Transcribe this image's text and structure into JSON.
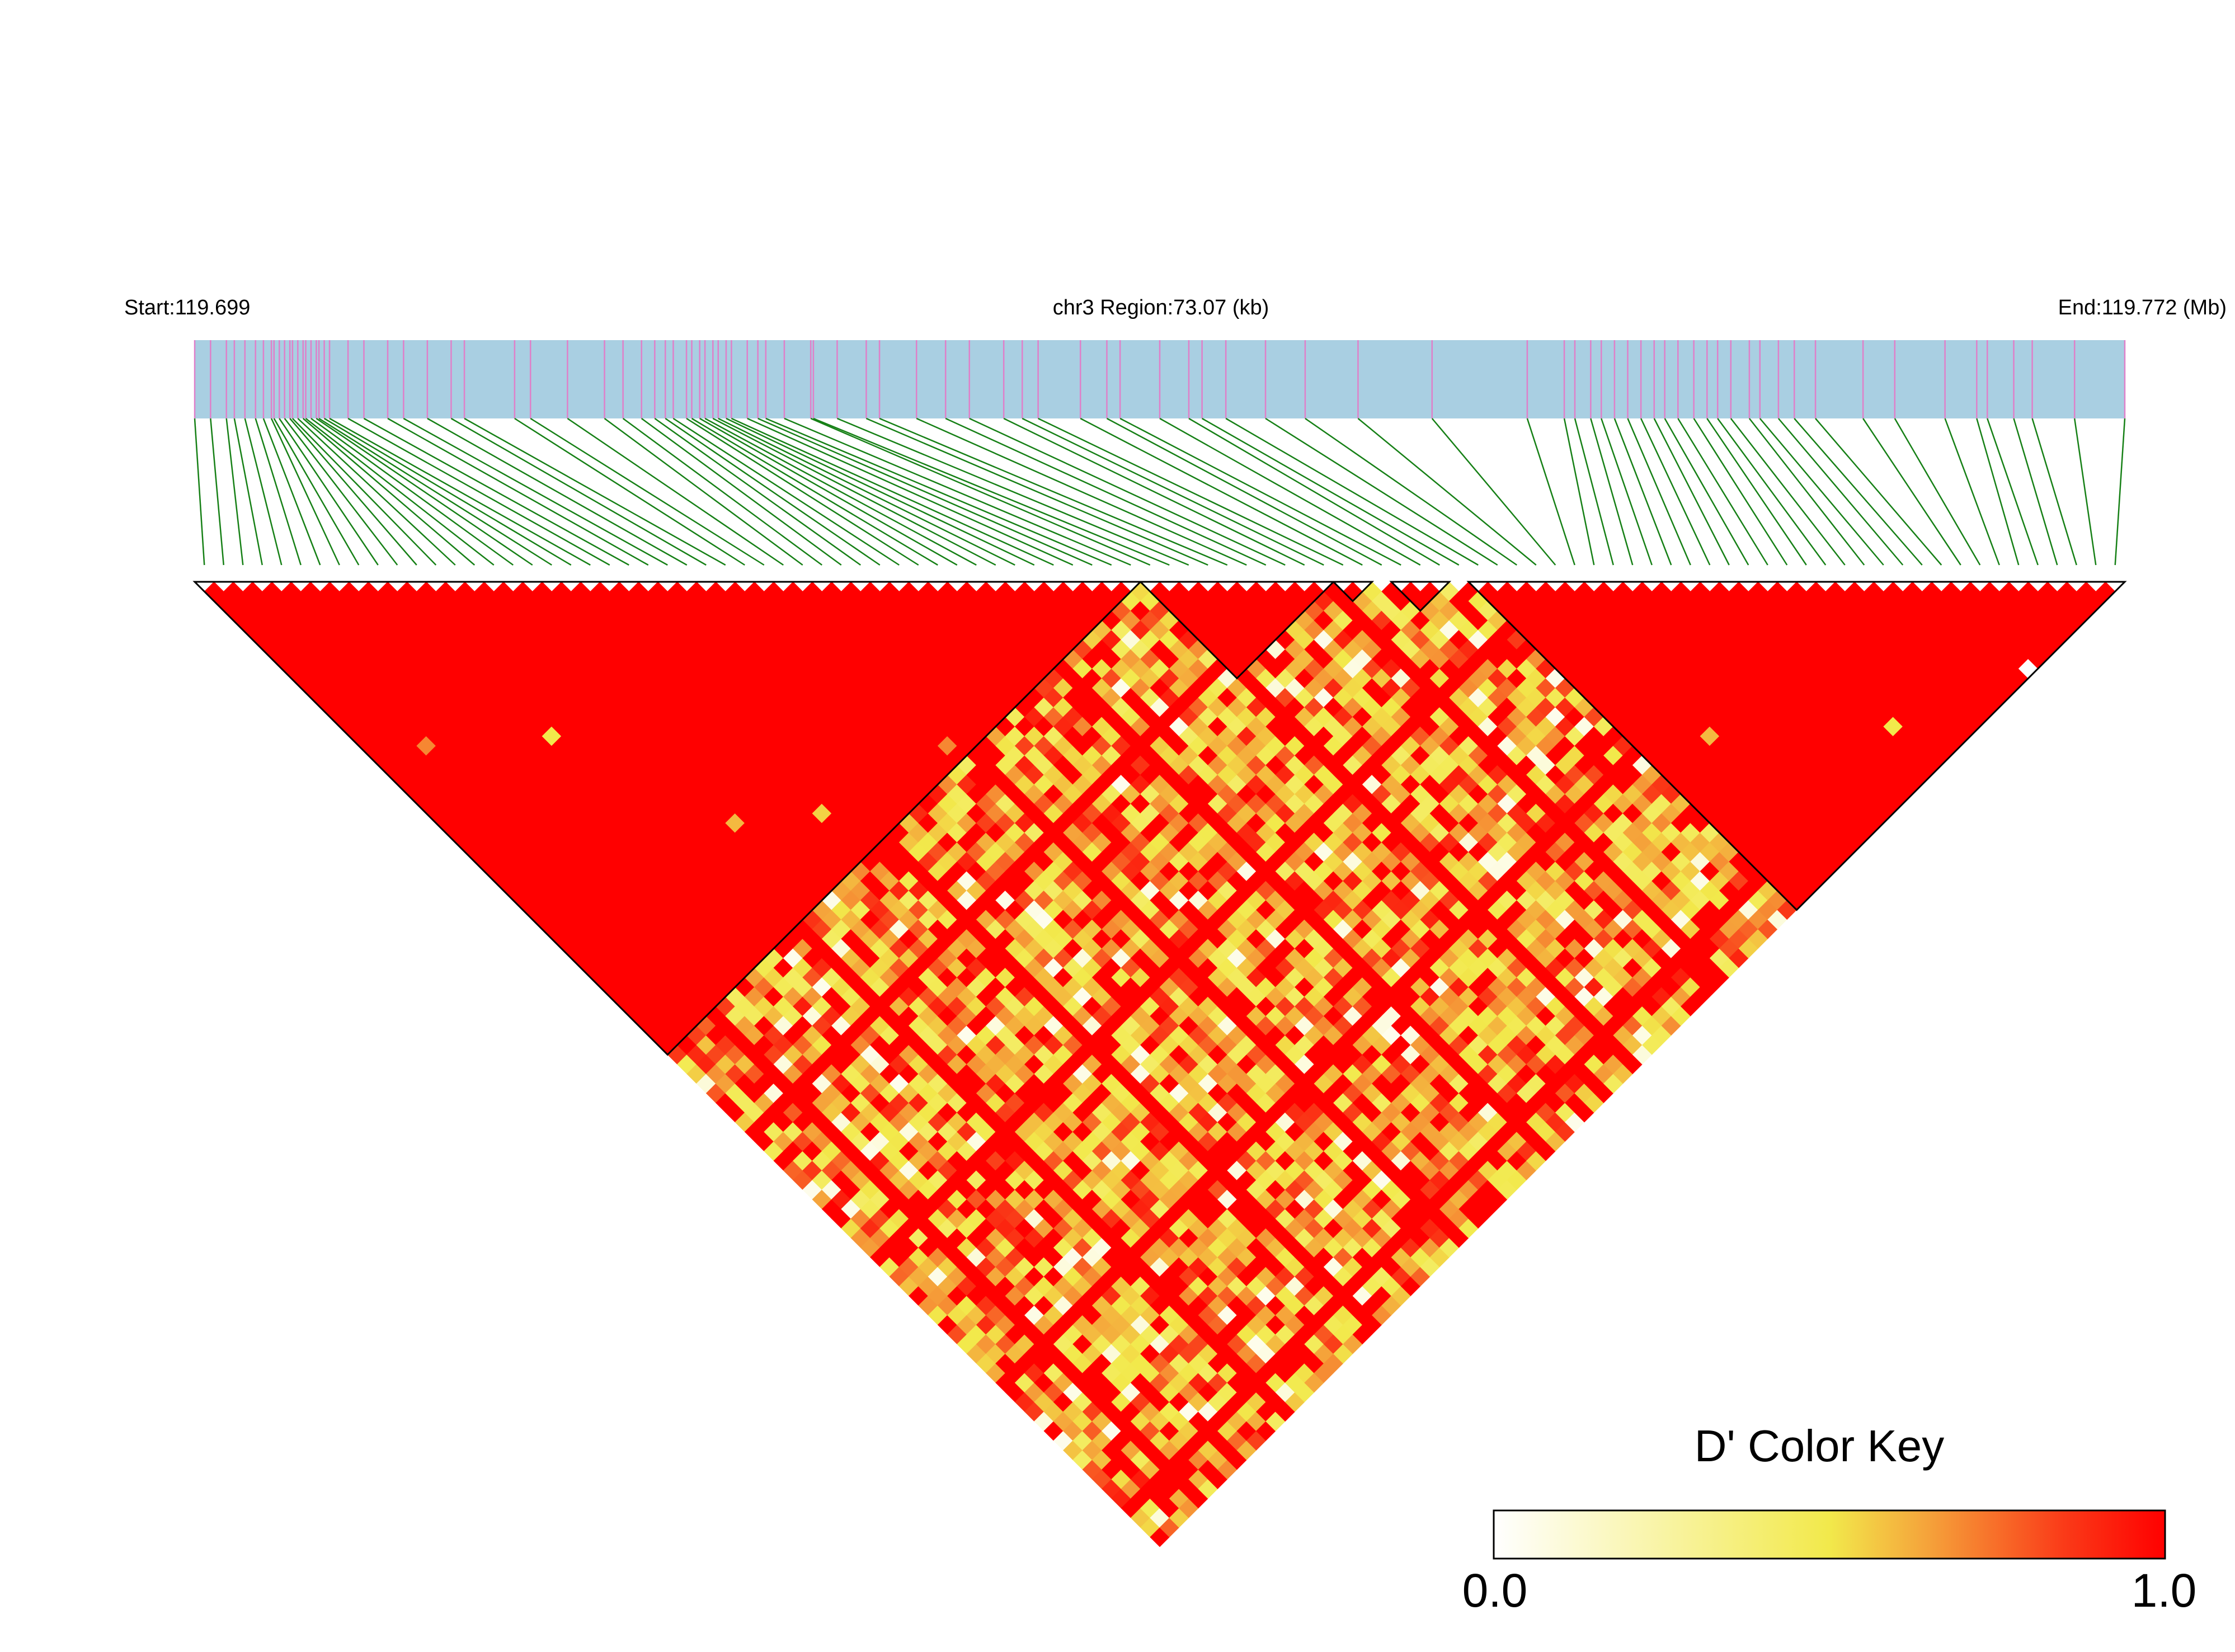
{
  "header": {
    "start_label": "Start:119.699",
    "region_label": "chr3 Region:73.07 (kb)",
    "end_label": "End:119.772 (Mb)"
  },
  "color_key": {
    "title": "D' Color Key",
    "min_label": "0.0",
    "max_label": "1.0"
  },
  "colors": {
    "track_fill": "#a9cfe2",
    "snp_marker": "#df80c9",
    "connector": "#168016",
    "block_outline": "#000000",
    "gradient": [
      "#ffffff",
      "#f2e94b",
      "#f5a13a",
      "#fa3a18",
      "#ff0000"
    ]
  },
  "chart_data": {
    "type": "heatmap",
    "title": "",
    "region": {
      "chromosome": "chr3",
      "start_mb": 119.699,
      "end_mb": 119.772,
      "span_kb": 73.07
    },
    "value_range": [
      0.0,
      1.0
    ],
    "snp_count": 100,
    "snp_positions_mb": [
      119.699,
      119.6996,
      119.7002,
      119.7005,
      119.7009,
      119.7013,
      119.7016,
      119.7019,
      119.702,
      119.7022,
      119.7024,
      119.7026,
      119.7027,
      119.7029,
      119.7031,
      119.7032,
      119.7034,
      119.7036,
      119.7037,
      119.7039,
      119.7041,
      119.7048,
      119.7054,
      119.7063,
      119.7069,
      119.7078,
      119.7087,
      119.7092,
      119.7111,
      119.7117,
      119.7131,
      119.7145,
      119.7152,
      119.7159,
      119.7164,
      119.7168,
      119.7171,
      119.7176,
      119.7178,
      119.7181,
      119.7183,
      119.7186,
      119.7188,
      119.7191,
      119.7193,
      119.7199,
      119.7203,
      119.7206,
      119.7213,
      119.7223,
      119.7224,
      119.7233,
      119.7244,
      119.7249,
      119.7263,
      119.7274,
      119.7283,
      119.7296,
      119.7303,
      119.7309,
      119.7325,
      119.7335,
      119.734,
      119.7355,
      119.7366,
      119.7371,
      119.738,
      119.7395,
      119.741,
      119.743,
      119.7458,
      119.7494,
      119.7508,
      119.7512,
      119.7518,
      119.7522,
      119.7527,
      119.7532,
      119.7537,
      119.7542,
      119.7546,
      119.7551,
      119.7557,
      119.7562,
      119.7566,
      119.7571,
      119.7578,
      119.7582,
      119.7589,
      119.7595,
      119.7603,
      119.7621,
      119.7633,
      119.7652,
      119.7664,
      119.7668,
      119.7678,
      119.7685,
      119.7701,
      119.772
    ],
    "ld_blocks": [
      {
        "first_snp": 0,
        "last_snp": 48
      },
      {
        "first_snp": 49,
        "last_snp": 58
      },
      {
        "first_snp": 59,
        "last_snp": 60
      },
      {
        "first_snp": 62,
        "last_snp": 64
      },
      {
        "first_snp": 66,
        "last_snp": 99
      }
    ],
    "within_block_dprime": 1.0,
    "within_block_exceptions": [
      {
        "i": 3,
        "j": 20,
        "d": 0.7
      },
      {
        "i": 10,
        "j": 26,
        "d": 0.5
      },
      {
        "i": 15,
        "j": 40,
        "d": 0.6
      },
      {
        "i": 20,
        "j": 44,
        "d": 0.55
      },
      {
        "i": 30,
        "j": 47,
        "d": 0.7
      },
      {
        "i": 70,
        "j": 86,
        "d": 0.6
      },
      {
        "i": 80,
        "j": 95,
        "d": 0.5
      },
      {
        "i": 90,
        "j": 99,
        "d": 0.0
      }
    ],
    "between_block_dprime_mean": 0.72,
    "between_block_dprime_range": [
      0.0,
      1.0
    ],
    "pattern": "block 0 and block 4 show complete LD (D' = 1); pairs spanning the central region (SNPs 49–65) are mixed yellow/orange/red with diagonal streaks of high D'"
  }
}
